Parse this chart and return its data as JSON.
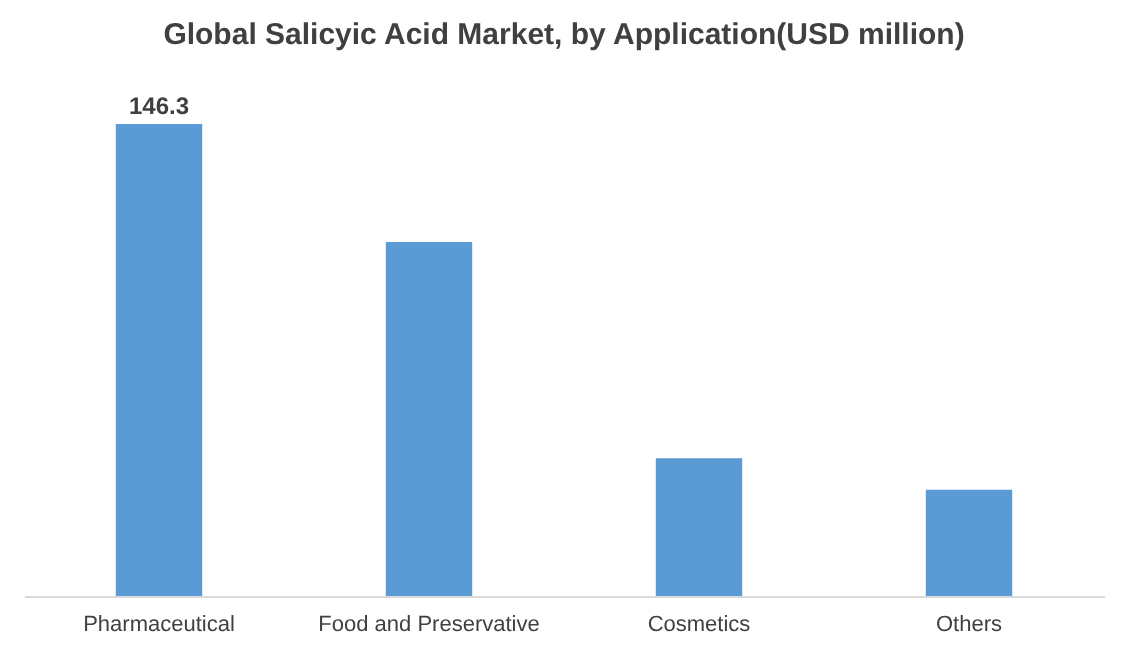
{
  "chart_data": {
    "type": "bar",
    "title": "Global Salicyic Acid Market, by Application(USD million)",
    "categories": [
      "Pharmaceutical",
      "Food and Preservative",
      "Cosmetics",
      "Others"
    ],
    "values": [
      146.3,
      109.7,
      42.7,
      32.9
    ],
    "value_labels": [
      "146.3",
      null,
      null,
      null
    ],
    "color": "#5b9bd5"
  }
}
